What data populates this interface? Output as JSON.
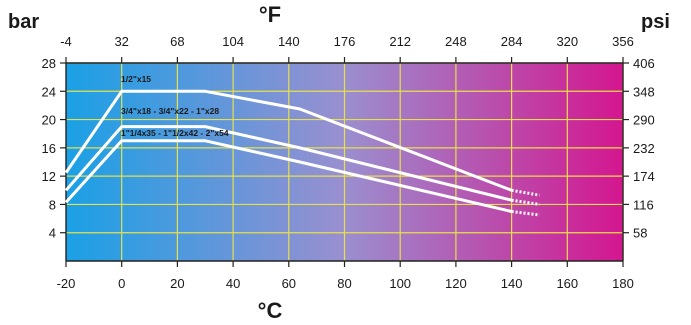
{
  "chart_data": {
    "type": "line",
    "title": "",
    "units": {
      "left": "bar",
      "right": "psi",
      "top": "°F",
      "bottom": "°C"
    },
    "x_axis_bottom": {
      "label": "°C",
      "range": [
        -20,
        180
      ],
      "ticks": [
        "-20",
        "0",
        "20",
        "40",
        "60",
        "80",
        "100",
        "120",
        "140",
        "160",
        "180"
      ]
    },
    "x_axis_top": {
      "label": "°F",
      "ticks": [
        "-4",
        "32",
        "68",
        "104",
        "140",
        "176",
        "212",
        "248",
        "284",
        "320",
        "356"
      ]
    },
    "y_axis_left": {
      "label": "bar",
      "range": [
        0,
        28
      ],
      "ticks": [
        "4",
        "8",
        "12",
        "16",
        "20",
        "24",
        "28"
      ]
    },
    "y_axis_right": {
      "label": "psi",
      "ticks": [
        "58",
        "116",
        "174",
        "232",
        "290",
        "348",
        "406"
      ]
    },
    "grid": true,
    "background": "gradient blue to magenta",
    "colors": {
      "gradient_start": "#1aa0e6",
      "gradient_mid": "#9a8fd0",
      "gradient_end": "#d4168f",
      "grid": "#e6e04a",
      "lines": "#ffffff"
    },
    "series": [
      {
        "name": "1/2\"x15",
        "solid": [
          [
            -20,
            12.5
          ],
          [
            0,
            24
          ],
          [
            30,
            24
          ],
          [
            64,
            21.5
          ],
          [
            140,
            10
          ]
        ],
        "dotted": [
          [
            140,
            10
          ],
          [
            150,
            9.3
          ]
        ]
      },
      {
        "name": "3/4\"x18 - 3/4\"x22 - 1\"x28",
        "solid": [
          [
            -20,
            10
          ],
          [
            0,
            19
          ],
          [
            30,
            19
          ],
          [
            64,
            16
          ],
          [
            140,
            8.6
          ]
        ],
        "dotted": [
          [
            140,
            8.6
          ],
          [
            150,
            8
          ]
        ]
      },
      {
        "name": "1\"1/4x35 - 1\"1/2x42 - 2\"x54",
        "solid": [
          [
            -20,
            8.3
          ],
          [
            0,
            17
          ],
          [
            30,
            17
          ],
          [
            64,
            14
          ],
          [
            140,
            7
          ]
        ],
        "dotted": [
          [
            140,
            7
          ],
          [
            150,
            6.5
          ]
        ]
      }
    ]
  }
}
